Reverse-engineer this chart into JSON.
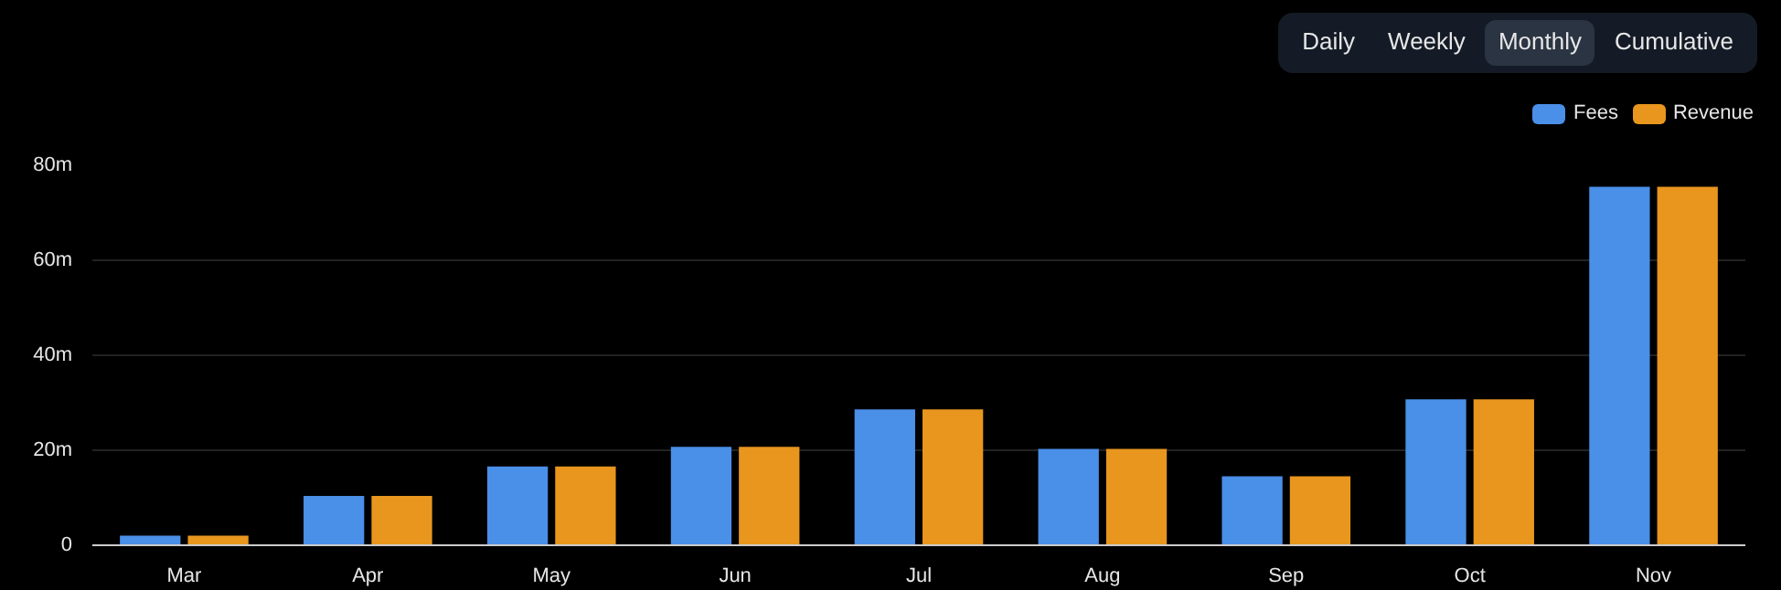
{
  "chart_data": {
    "type": "bar",
    "annotations": [
      "Daily",
      "Weekly",
      "Monthly",
      "Cumulative"
    ],
    "categories": [
      "Mar",
      "Apr",
      "May",
      "Jun",
      "Jul",
      "Aug",
      "Sep",
      "Oct",
      "Nov"
    ],
    "series": [
      {
        "name": "Fees",
        "color": "#4a8fe8",
        "values": [
          2,
          10.4,
          16.6,
          20.7,
          28.6,
          20.3,
          14.5,
          30.7,
          75.5
        ]
      },
      {
        "name": "Revenue",
        "color": "#e8961e",
        "values": [
          2,
          10.4,
          16.6,
          20.7,
          28.6,
          20.3,
          14.5,
          30.7,
          75.5
        ]
      }
    ],
    "ylim": [
      0,
      80
    ],
    "yticks": [
      {
        "value": 0,
        "label": "0"
      },
      {
        "value": 20,
        "label": "20m"
      },
      {
        "value": 40,
        "label": "40m"
      },
      {
        "value": 60,
        "label": "60m"
      },
      {
        "value": 80,
        "label": "80m"
      }
    ],
    "grid": "y",
    "legend": "top right"
  }
}
